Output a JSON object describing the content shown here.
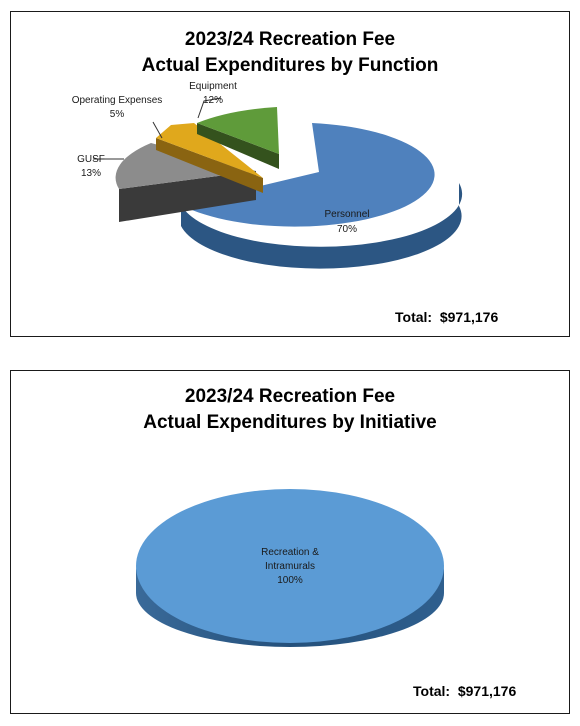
{
  "chart_data": [
    {
      "type": "pie",
      "title": "2023/24 Recreation Fee",
      "subtitle": "Actual Expenditures by Function",
      "slices": [
        {
          "label": "Personnel",
          "pct_label": "70%",
          "value": 70,
          "color": "#4f81bd"
        },
        {
          "label": "GUSF",
          "pct_label": "13%",
          "value": 13,
          "color": "#8c8c8c"
        },
        {
          "label": "Operating Expenses",
          "pct_label": "5%",
          "value": 5,
          "color": "#e0a81c"
        },
        {
          "label": "Equipment",
          "pct_label": "12%",
          "value": 12,
          "color": "#5f9b3a"
        }
      ],
      "total": "Total:  $971,176"
    },
    {
      "type": "pie",
      "title": "2023/24 Recreation Fee",
      "subtitle": "Actual Expenditures by Initiative",
      "slices": [
        {
          "label_lines": [
            "Recreation &",
            "Intramurals"
          ],
          "pct_label": "100%",
          "value": 100,
          "color": "#5b9bd5"
        }
      ],
      "total": "Total:  $971,176"
    }
  ]
}
